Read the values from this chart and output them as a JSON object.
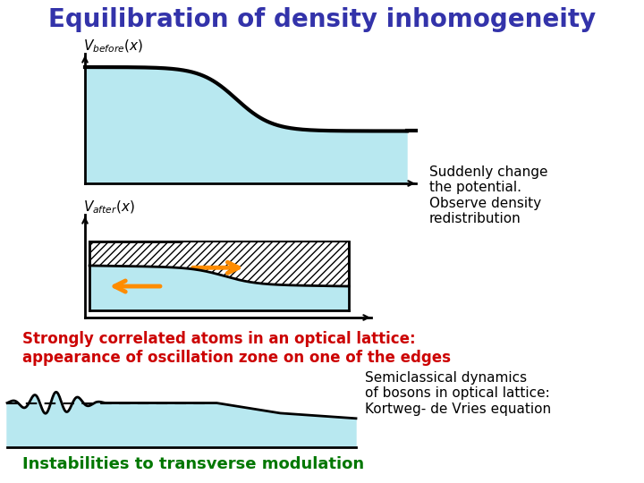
{
  "title": "Equilibration of density inhomogeneity",
  "title_color": "#3333aa",
  "title_fontsize": 20,
  "bg_color": "#ffffff",
  "light_blue": "#b8e8f0",
  "text1": "Suddenly change\nthe potential.\nObserve density\nredistribution",
  "text1_color": "#000000",
  "text2_line1": "Strongly correlated atoms in an optical lattice:",
  "text2_line2": "appearance of oscillation zone on one of the edges",
  "text2_color": "#cc0000",
  "text3": "Semiclassical dynamics\nof bosons in optical lattice:\nKortweg- de Vries equation",
  "text3_color": "#000000",
  "text4": "Instabilities to transverse modulation",
  "text4_color": "#007700"
}
